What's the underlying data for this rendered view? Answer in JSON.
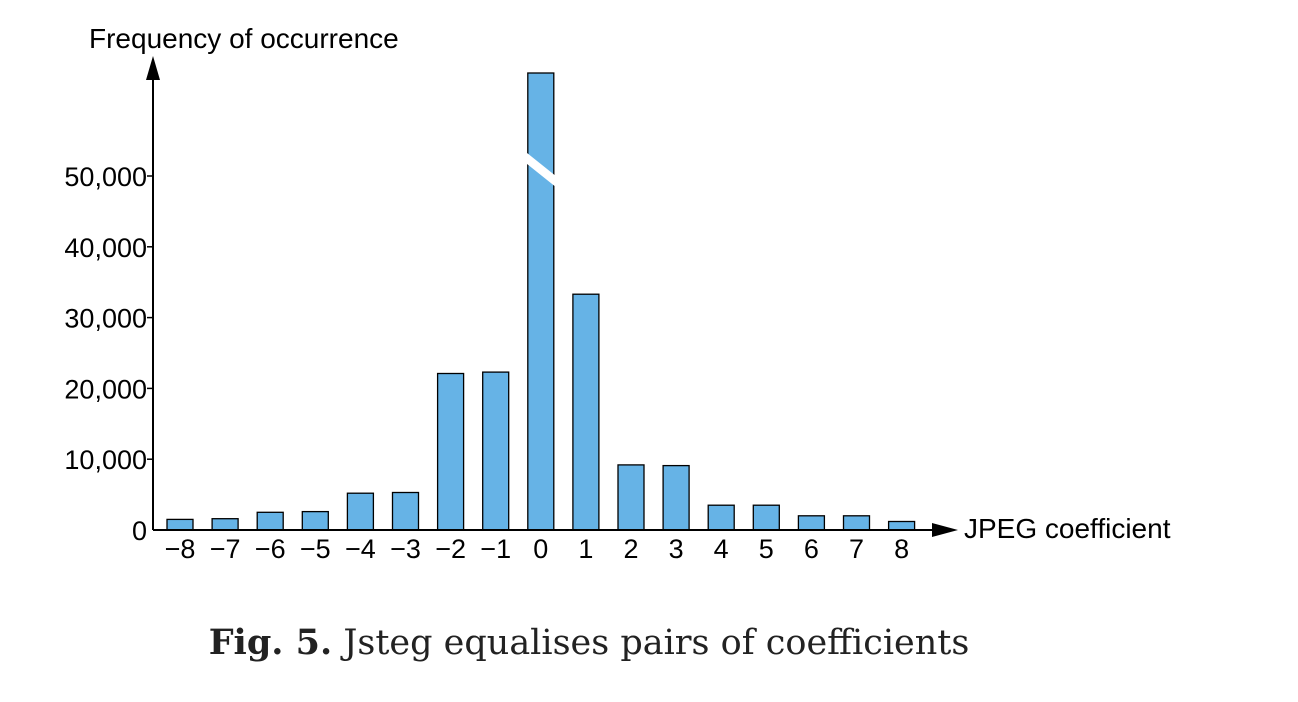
{
  "chart_data": {
    "type": "bar",
    "ylabel": "Frequency of occurrence",
    "xlabel": "JPEG coefficient",
    "categories": [
      "−8",
      "−7",
      "−6",
      "−5",
      "−4",
      "−3",
      "−2",
      "−1",
      "0",
      "1",
      "2",
      "3",
      "4",
      "5",
      "6",
      "7",
      "8"
    ],
    "values": [
      1500,
      1600,
      2500,
      2600,
      5200,
      5300,
      22100,
      22300,
      null,
      33300,
      9200,
      9100,
      3500,
      3500,
      2000,
      2000,
      1200
    ],
    "yticks": [
      0,
      10000,
      20000,
      30000,
      40000,
      50000
    ],
    "ytick_labels": [
      "0",
      "10,000",
      "20,000",
      "30,000",
      "40,000",
      "50,000"
    ],
    "ylim": [
      0,
      65000
    ],
    "broken_bar": {
      "category": "0",
      "note": "bar exceeds axis; drawn with break"
    },
    "bar_color": "#66b3e6",
    "grid": false
  },
  "caption": {
    "label": "Fig. 5.",
    "text": "Jsteg equalises pairs of coefficients"
  }
}
